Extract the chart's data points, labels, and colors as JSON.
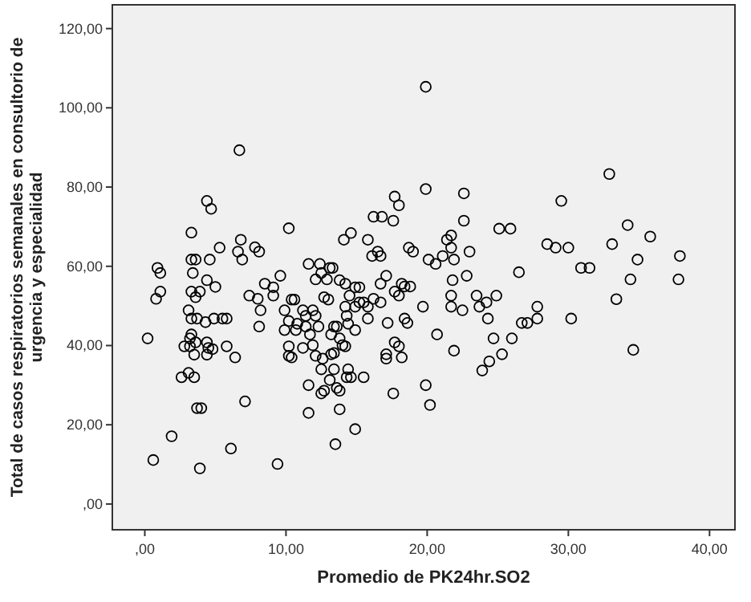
{
  "chart_data": {
    "type": "scatter",
    "xlabel": "Promedio de PK24hr.SO2",
    "ylabel": "Total de casos respiratorios semanales en consultorio de urgencia y especialidad",
    "xlim": [
      -2.3,
      41.8
    ],
    "ylim": [
      -6.5,
      126
    ],
    "xticks": [
      {
        "value": 0,
        "label": ",00"
      },
      {
        "value": 10,
        "label": "10,00"
      },
      {
        "value": 20,
        "label": "20,00"
      },
      {
        "value": 30,
        "label": "30,00"
      },
      {
        "value": 40,
        "label": "40,00"
      }
    ],
    "yticks": [
      {
        "value": 0,
        "label": ",00"
      },
      {
        "value": 20,
        "label": "20,00"
      },
      {
        "value": 40,
        "label": "40,00"
      },
      {
        "value": 60,
        "label": "60,00"
      },
      {
        "value": 80,
        "label": "80,00"
      },
      {
        "value": 100,
        "label": "100,00"
      },
      {
        "value": 120,
        "label": "120,00"
      }
    ],
    "grid": false,
    "marker": "circle",
    "series": [
      {
        "color": "#000000",
        "x": [
          6.7,
          4.4,
          4.7,
          3.3,
          10.2,
          6.8,
          6.6,
          6.9,
          7.8,
          8.1,
          5.3,
          4.6,
          3.3,
          3.6,
          3.4,
          0.9,
          1.1,
          0.8,
          1.1,
          4.4,
          5.0,
          3.3,
          3.6,
          3.9,
          9.6,
          8.5,
          9.1,
          9.1,
          7.4,
          8.0,
          3.1,
          3.3,
          3.7,
          4.9,
          5.5,
          5.8,
          8.2,
          4.3,
          8.1,
          0.2,
          3.3,
          3.2,
          2.8,
          3.2,
          3.6,
          4.4,
          4.5,
          4.8,
          4.4,
          3.5,
          5.8,
          6.4,
          9.9,
          10.4,
          10.6,
          9.9,
          10.7,
          10.2,
          10.4,
          10.2,
          2.6,
          3.1,
          3.5,
          3.7,
          4.0,
          7.1,
          1.9,
          0.6,
          3.9,
          6.1,
          9.4,
          11.6,
          11.6,
          12.5,
          11.6,
          12.4,
          13.1,
          12.5,
          12.9,
          12.1,
          12.7,
          13.0,
          11.9,
          11.4,
          11.2,
          10.2,
          10.8,
          11.4,
          12.1,
          12.3,
          11.7,
          11.2,
          11.9,
          12.1,
          12.6,
          12.5,
          13.2,
          13.4,
          13.4,
          13.2,
          19.9,
          17.7,
          18.0,
          22.6,
          16.2,
          16.8,
          17.6,
          22.6,
          25.1,
          25.9,
          14.6,
          14.1,
          15.8,
          16.1,
          16.5,
          16.7,
          18.7,
          19.0,
          20.1,
          20.6,
          21.1,
          21.4,
          21.7,
          21.7,
          21.9,
          23.0,
          22.8,
          21.8,
          21.7,
          21.7,
          22.5,
          23.5,
          24.2,
          24.9,
          23.7,
          26.5,
          24.3,
          26.7,
          27.1,
          24.7,
          26.0,
          25.3,
          24.4,
          23.9,
          20.7,
          21.9,
          19.7,
          17.1,
          16.7,
          17.7,
          18.2,
          18.4,
          18.8,
          18.0,
          16.2,
          16.7,
          15.8,
          15.2,
          14.9,
          15.5,
          14.9,
          15.2,
          15.8,
          17.2,
          18.4,
          18.6,
          17.7,
          18.0,
          18.2,
          17.1,
          17.1,
          17.6,
          19.9,
          20.2,
          15.5,
          14.6,
          14.3,
          13.8,
          13.8,
          14.9,
          13.5,
          14.2,
          14.5,
          14.2,
          14.3,
          14.4,
          14.9,
          14.2,
          13.3,
          13.8,
          13.6,
          13.8,
          14.0,
          13.4,
          14.4,
          13.1,
          13.6,
          12.7,
          32.9,
          29.5,
          34.2,
          35.8,
          33.1,
          28.5,
          29.1,
          30.0,
          34.9,
          37.9,
          30.9,
          31.5,
          34.4,
          37.8,
          33.4,
          27.8,
          27.8,
          30.2,
          34.6,
          19.9
        ],
        "values": [
          89.3,
          76.5,
          74.5,
          68.5,
          69.6,
          66.7,
          63.7,
          61.7,
          64.8,
          63.7,
          64.7,
          61.7,
          61.7,
          61.7,
          58.3,
          59.6,
          58.3,
          51.8,
          53.6,
          56.5,
          54.8,
          53.6,
          52.2,
          53.6,
          57.6,
          55.6,
          54.7,
          52.6,
          52.6,
          51.8,
          48.9,
          46.8,
          46.8,
          46.8,
          46.8,
          46.8,
          48.9,
          45.9,
          44.8,
          41.8,
          42.8,
          41.8,
          39.8,
          39.8,
          40.8,
          40.8,
          39.4,
          39.1,
          37.7,
          37.7,
          39.8,
          37.0,
          48.9,
          51.6,
          51.6,
          43.9,
          43.9,
          39.8,
          37.0,
          37.4,
          32.0,
          33.1,
          32.0,
          24.2,
          24.2,
          25.9,
          17.1,
          11.1,
          9.0,
          14.0,
          10.1,
          23.0,
          30.0,
          27.9,
          60.6,
          60.6,
          59.6,
          58.3,
          56.7,
          56.7,
          52.2,
          51.6,
          48.9,
          47.5,
          48.9,
          46.2,
          45.5,
          44.8,
          47.5,
          44.8,
          42.8,
          39.4,
          40.1,
          37.4,
          36.7,
          34.0,
          37.8,
          38.1,
          44.8,
          42.8,
          79.5,
          77.6,
          75.4,
          78.4,
          72.5,
          72.5,
          71.5,
          71.5,
          69.5,
          69.5,
          68.4,
          66.7,
          66.7,
          62.6,
          63.7,
          62.6,
          64.7,
          63.7,
          61.7,
          60.6,
          62.6,
          66.7,
          67.8,
          64.7,
          61.7,
          63.7,
          57.6,
          56.5,
          52.6,
          49.8,
          48.9,
          52.6,
          50.9,
          52.6,
          49.8,
          58.5,
          46.8,
          45.7,
          45.7,
          41.8,
          41.8,
          37.8,
          36.0,
          33.7,
          42.8,
          38.7,
          49.8,
          57.6,
          55.6,
          53.6,
          55.6,
          54.9,
          54.9,
          52.6,
          51.8,
          50.9,
          49.8,
          50.9,
          49.8,
          50.9,
          54.7,
          54.7,
          46.8,
          45.7,
          46.8,
          45.7,
          40.8,
          39.8,
          37.0,
          37.8,
          36.7,
          27.9,
          30.0,
          25.0,
          32.0,
          32.0,
          32.0,
          28.6,
          23.9,
          18.9,
          15.1,
          55.6,
          52.6,
          49.8,
          47.5,
          45.5,
          43.9,
          39.8,
          59.6,
          56.5,
          44.8,
          41.8,
          40.1,
          34.0,
          34.0,
          31.3,
          29.3,
          28.6,
          83.3,
          76.5,
          70.4,
          67.5,
          65.6,
          65.6,
          64.7,
          64.7,
          61.7,
          62.6,
          59.6,
          59.6,
          56.7,
          56.7,
          51.7,
          49.8,
          46.8,
          46.8,
          38.9,
          105.3
        ]
      }
    ]
  }
}
